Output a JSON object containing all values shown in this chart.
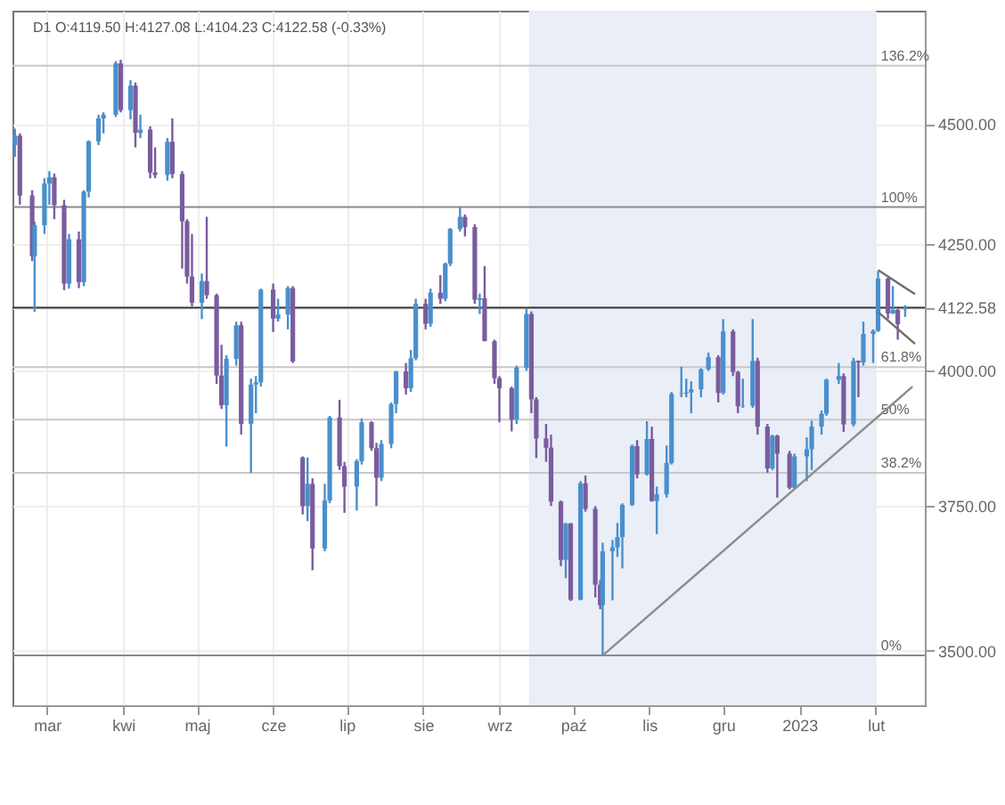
{
  "chart_data": {
    "type": "candlestick",
    "title": "D1 O:4119.50 H:4127.08 L:4104.23 C:4122.58 (-0.33%)",
    "log": "y",
    "grid": true,
    "colors": [
      "#4a8fcc",
      "#7a5c9e",
      "#7a5c9e",
      "#4a8fcc",
      "#4a8fcc",
      "#4a8fcc",
      "#7a5c9e",
      "#7a5c9e",
      "#4a8fcc",
      "#7a5c9e",
      "#4a8fcc",
      "#4a8fcc",
      "#4a8fcc",
      "#4a8fcc",
      "#4a8fcc",
      "#7a5c9e",
      "#4a8fcc",
      "#7a5c9e",
      "#4a8fcc",
      "#7a5c9e",
      "#7a5c9e",
      "#4a8fcc",
      "#7a5c9e",
      "#7a5c9e",
      "#7a5c9e",
      "#7a5c9e",
      "#4a8fcc",
      "#7a5c9e",
      "#7a5c9e",
      "#7a5c9e",
      "#4a8fcc",
      "#4a8fcc",
      "#7a5c9e",
      "#4a8fcc",
      "#4a8fcc",
      "#4a8fcc",
      "#7a5c9e",
      "#4a8fcc",
      "#4a8fcc",
      "#7a5c9e",
      "#7a5c9e",
      "#4a8fcc",
      "#7a5c9e",
      "#4a8fcc",
      "#4a8fcc",
      "#7a5c9e",
      "#7a5c9e",
      "#4a8fcc",
      "#4a8fcc",
      "#7a5c9e",
      "#7a5c9e",
      "#4a8fcc",
      "#4a8fcc",
      "#4a8fcc",
      "#7a5c9e",
      "#4a8fcc",
      "#4a8fcc",
      "#7a5c9e",
      "#4a8fcc",
      "#7a5c9e",
      "#4a8fcc",
      "#4a8fcc",
      "#4a8fcc",
      "#7a5c9e",
      "#7a5c9e",
      "#4a8fcc",
      "#7a5c9e",
      "#7a5c9e",
      "#7a5c9e",
      "#7a5c9e",
      "#4a8fcc",
      "#4a8fcc",
      "#7a5c9e",
      "#7a5c9e",
      "#7a5c9e",
      "#7a5c9e",
      "#7a5c9e",
      "#4a8fcc",
      "#7a5c9e",
      "#4a8fcc",
      "#7a5c9e",
      "#7a5c9e",
      "#7a5c9e",
      "#4a8fcc",
      "#4a8fcc",
      "#4a8fcc",
      "#4a8fcc",
      "#4a8fcc",
      "#7a5c9e",
      "#4a8fcc",
      "#7a5c9e",
      "#4a8fcc",
      "#4a8fcc",
      "#4a8fcc",
      "#4a8fcc",
      "#4a8fcc",
      "#4a8fcc",
      "#4a8fcc",
      "#4a8fcc",
      "#7a5c9e",
      "#4a8fcc",
      "#7a5c9e",
      "#7a5c9e",
      "#4a8fcc",
      "#4a8fcc",
      "#7a5c9e",
      "#7a5c9e",
      "#4a8fcc",
      "#7a5c9e",
      "#7a5c9e",
      "#4a8fcc",
      "#4a8fcc",
      "#4a8fcc",
      "#4a8fcc",
      "#4a8fcc",
      "#4a8fcc",
      "#7a5c9e",
      "#4a8fcc",
      "#7a5c9e",
      "#4a8fcc",
      "#4a8fcc",
      "#4a8fcc",
      "#7a5c9e",
      "#4a8fcc",
      "#7a5c9e",
      "#4a8fcc"
    ],
    "annotations": [
      {
        "text": "136.2%",
        "x": "2023-02-01",
        "y": 4627
      },
      {
        "text": "100%",
        "x": "2023-02-01",
        "y": 4325
      },
      {
        "text": "61.8%",
        "x": "2023-02-01",
        "y": 4007
      },
      {
        "text": "50%",
        "x": "2023-02-01",
        "y": 3908
      },
      {
        "text": "38.2%",
        "x": "2023-02-01",
        "y": 3810
      },
      {
        "text": "0%",
        "x": "2023-02-01",
        "y": 3492
      }
    ],
    "xlim": [
      "2022-02-15",
      "2023-02-21"
    ],
    "xticks": [
      {
        "value": "2022-03-01",
        "label": "mar"
      },
      {
        "value": "2022-04-01",
        "label": "kwi"
      },
      {
        "value": "2022-05-01",
        "label": "maj"
      },
      {
        "value": "2022-06-01",
        "label": "cze"
      },
      {
        "value": "2022-07-01",
        "label": "lip"
      },
      {
        "value": "2022-08-01",
        "label": "sie"
      },
      {
        "value": "2022-09-01",
        "label": "wrz"
      },
      {
        "value": "2022-10-01",
        "label": "paź"
      },
      {
        "value": "2022-11-01",
        "label": "lis"
      },
      {
        "value": "2022-12-01",
        "label": "gru"
      },
      {
        "value": "2023-01-01",
        "label": "2023"
      },
      {
        "value": "2023-02-01",
        "label": "lut"
      }
    ],
    "ylim": [
      3410,
      4750
    ],
    "yticks": [
      {
        "value": 3500,
        "label": "3500.00"
      },
      {
        "value": 3750,
        "label": "3750.00"
      },
      {
        "value": 4000,
        "label": "4000.00"
      },
      {
        "value": 4122.58,
        "label": "4122.58"
      },
      {
        "value": 4250,
        "label": "4250.00"
      },
      {
        "value": 4500,
        "label": "4500.00"
      }
    ],
    "bands": [
      {
        "axis": "x",
        "from": "2022-09-13",
        "to": "2023-02-01",
        "color": "#e9eef7"
      }
    ],
    "ref_lines": [
      {
        "axis": "y",
        "value": 4627,
        "color": "#c8c8c8"
      },
      {
        "axis": "y",
        "value": 4325,
        "color": "#8a8a8a"
      },
      {
        "axis": "y",
        "value": 4007,
        "color": "#c8c8c8"
      },
      {
        "axis": "y",
        "value": 3908,
        "color": "#c8c8c8"
      },
      {
        "axis": "y",
        "value": 3810,
        "color": "#c8c8c8"
      },
      {
        "axis": "y",
        "value": 3492,
        "color": "#8a8a8a"
      },
      {
        "axis": "y",
        "value": 4122.58,
        "color": "#333333"
      }
    ],
    "x": [
      "2022-02-16",
      "2022-02-18",
      "2022-02-23",
      "2022-02-24",
      "2022-02-28",
      "2022-03-02",
      "2022-03-04",
      "2022-03-08",
      "2022-03-10",
      "2022-03-14",
      "2022-03-16",
      "2022-03-18",
      "2022-03-22",
      "2022-03-24",
      "2022-03-29",
      "2022-03-31",
      "2022-04-04",
      "2022-04-06",
      "2022-04-08",
      "2022-04-12",
      "2022-04-14",
      "2022-04-19",
      "2022-04-21",
      "2022-04-25",
      "2022-04-27",
      "2022-04-29",
      "2022-05-03",
      "2022-05-05",
      "2022-05-09",
      "2022-05-11",
      "2022-05-13",
      "2022-05-17",
      "2022-05-19",
      "2022-05-23",
      "2022-05-25",
      "2022-05-27",
      "2022-06-01",
      "2022-06-03",
      "2022-06-07",
      "2022-06-09",
      "2022-06-13",
      "2022-06-15",
      "2022-06-17",
      "2022-06-22",
      "2022-06-24",
      "2022-06-28",
      "2022-06-30",
      "2022-07-05",
      "2022-07-07",
      "2022-07-11",
      "2022-07-13",
      "2022-07-15",
      "2022-07-19",
      "2022-07-21",
      "2022-07-25",
      "2022-07-27",
      "2022-07-29",
      "2022-08-02",
      "2022-08-04",
      "2022-08-08",
      "2022-08-10",
      "2022-08-12",
      "2022-08-16",
      "2022-08-18",
      "2022-08-22",
      "2022-08-24",
      "2022-08-26",
      "2022-08-30",
      "2022-09-01",
      "2022-09-06",
      "2022-09-08",
      "2022-09-12",
      "2022-09-14",
      "2022-09-16",
      "2022-09-20",
      "2022-09-22",
      "2022-09-26",
      "2022-09-28",
      "2022-09-30",
      "2022-10-04",
      "2022-10-06",
      "2022-10-10",
      "2022-10-12",
      "2022-10-13",
      "2022-10-17",
      "2022-10-19",
      "2022-10-21",
      "2022-10-25",
      "2022-10-27",
      "2022-10-31",
      "2022-11-02",
      "2022-11-04",
      "2022-11-08",
      "2022-11-10",
      "2022-11-14",
      "2022-11-16",
      "2022-11-18",
      "2022-11-22",
      "2022-11-25",
      "2022-11-29",
      "2022-12-01",
      "2022-12-05",
      "2022-12-07",
      "2022-12-09",
      "2022-12-13",
      "2022-12-15",
      "2022-12-19",
      "2022-12-21",
      "2022-12-23",
      "2022-12-28",
      "2022-12-30",
      "2023-01-04",
      "2023-01-06",
      "2023-01-10",
      "2023-01-12",
      "2023-01-17",
      "2023-01-19",
      "2023-01-23",
      "2023-01-25",
      "2023-01-27",
      "2023-01-31",
      "2023-02-02",
      "2023-02-06",
      "2023-02-08",
      "2023-02-10",
      "2023-02-13"
    ],
    "ohlc": [
      [
        4455,
        4490,
        4430,
        4475
      ],
      [
        4475,
        4480,
        4330,
        4349
      ],
      [
        4349,
        4360,
        4215,
        4225
      ],
      [
        4225,
        4295,
        4114,
        4288
      ],
      [
        4288,
        4385,
        4270,
        4374
      ],
      [
        4374,
        4400,
        4330,
        4387
      ],
      [
        4387,
        4395,
        4300,
        4329
      ],
      [
        4329,
        4340,
        4157,
        4170
      ],
      [
        4170,
        4270,
        4160,
        4259
      ],
      [
        4259,
        4275,
        4161,
        4173
      ],
      [
        4173,
        4360,
        4165,
        4357
      ],
      [
        4357,
        4465,
        4345,
        4463
      ],
      [
        4463,
        4520,
        4455,
        4512
      ],
      [
        4512,
        4525,
        4480,
        4520
      ],
      [
        4520,
        4637,
        4515,
        4632
      ],
      [
        4632,
        4640,
        4525,
        4530
      ],
      [
        4530,
        4595,
        4510,
        4583
      ],
      [
        4583,
        4590,
        4450,
        4481
      ],
      [
        4481,
        4520,
        4470,
        4488
      ],
      [
        4488,
        4495,
        4385,
        4397
      ],
      [
        4397,
        4450,
        4385,
        4392
      ],
      [
        4392,
        4470,
        4380,
        4462
      ],
      [
        4462,
        4512,
        4385,
        4394
      ],
      [
        4394,
        4400,
        4200,
        4296
      ],
      [
        4296,
        4300,
        4170,
        4184
      ],
      [
        4184,
        4270,
        4125,
        4132
      ],
      [
        4132,
        4190,
        4100,
        4175
      ],
      [
        4175,
        4305,
        4140,
        4147
      ],
      [
        4147,
        4150,
        3975,
        3991
      ],
      [
        3991,
        4050,
        3928,
        3935
      ],
      [
        3935,
        4030,
        3858,
        4023
      ],
      [
        4023,
        4095,
        4010,
        4088
      ],
      [
        4088,
        4095,
        3880,
        3900
      ],
      [
        3900,
        3985,
        3810,
        3974
      ],
      [
        3974,
        3990,
        3920,
        3978
      ],
      [
        3978,
        4160,
        3970,
        4158
      ],
      [
        4158,
        4170,
        4075,
        4101
      ],
      [
        4101,
        4140,
        4095,
        4109
      ],
      [
        4109,
        4165,
        4080,
        4161
      ],
      [
        4161,
        4165,
        4015,
        4018
      ],
      [
        3838,
        3840,
        3735,
        3750
      ],
      [
        3750,
        3838,
        3723,
        3790
      ],
      [
        3790,
        3800,
        3637,
        3675
      ],
      [
        3675,
        3790,
        3670,
        3760
      ],
      [
        3760,
        3915,
        3755,
        3912
      ],
      [
        3912,
        3945,
        3815,
        3822
      ],
      [
        3822,
        3830,
        3738,
        3785
      ],
      [
        3785,
        3835,
        3742,
        3831
      ],
      [
        3831,
        3910,
        3825,
        3903
      ],
      [
        3903,
        3905,
        3850,
        3855
      ],
      [
        3855,
        3865,
        3750,
        3801
      ],
      [
        3801,
        3870,
        3795,
        3863
      ],
      [
        3863,
        3940,
        3855,
        3937
      ],
      [
        3937,
        4000,
        3920,
        3999
      ],
      [
        3999,
        4015,
        3955,
        3967
      ],
      [
        3967,
        4040,
        3960,
        4024
      ],
      [
        4024,
        4140,
        4020,
        4130
      ],
      [
        4130,
        4140,
        4080,
        4091
      ],
      [
        4091,
        4160,
        4085,
        4152
      ],
      [
        4152,
        4187,
        4130,
        4140
      ],
      [
        4140,
        4212,
        4135,
        4210
      ],
      [
        4210,
        4282,
        4205,
        4280
      ],
      [
        4280,
        4325,
        4275,
        4305
      ],
      [
        4305,
        4310,
        4265,
        4284
      ],
      [
        4284,
        4290,
        4130,
        4138
      ],
      [
        4138,
        4150,
        4110,
        4141
      ],
      [
        4141,
        4205,
        4057,
        4057
      ],
      [
        4057,
        4060,
        3975,
        3986
      ],
      [
        3986,
        3990,
        3903,
        3967
      ],
      [
        3967,
        3970,
        3886,
        3908
      ],
      [
        3908,
        4010,
        3900,
        4006
      ],
      [
        4006,
        4120,
        4000,
        4110
      ],
      [
        4110,
        4115,
        3920,
        3946
      ],
      [
        3946,
        3950,
        3837,
        3873
      ],
      [
        3873,
        3900,
        3830,
        3856
      ],
      [
        3856,
        3880,
        3750,
        3758
      ],
      [
        3758,
        3760,
        3644,
        3655
      ],
      [
        3655,
        3720,
        3623,
        3719
      ],
      [
        3719,
        3720,
        3584,
        3586
      ],
      [
        3586,
        3795,
        3585,
        3791
      ],
      [
        3791,
        3805,
        3740,
        3745
      ],
      [
        3745,
        3750,
        3590,
        3612
      ],
      [
        3612,
        3620,
        3570,
        3577
      ],
      [
        3577,
        3685,
        3492,
        3670
      ],
      [
        3670,
        3690,
        3585,
        3677
      ],
      [
        3677,
        3720,
        3660,
        3695
      ],
      [
        3695,
        3755,
        3640,
        3752
      ],
      [
        3752,
        3862,
        3750,
        3859
      ],
      [
        3859,
        3870,
        3800,
        3807
      ],
      [
        3807,
        3905,
        3805,
        3872
      ],
      [
        3872,
        3895,
        3758,
        3759
      ],
      [
        3759,
        3785,
        3700,
        3771
      ],
      [
        3771,
        3860,
        3765,
        3828
      ],
      [
        3828,
        3960,
        3825,
        3956
      ],
      [
        3956,
        4008,
        3950,
        3957
      ],
      [
        3957,
        3985,
        3950,
        3959
      ],
      [
        3959,
        3980,
        3920,
        3965
      ],
      [
        3965,
        4005,
        3950,
        4003
      ],
      [
        4003,
        4035,
        4000,
        4026
      ],
      [
        4026,
        4030,
        3940,
        3958
      ],
      [
        3958,
        4100,
        3955,
        4076
      ],
      [
        4076,
        4080,
        3990,
        3998
      ],
      [
        3998,
        4000,
        3920,
        3933
      ],
      [
        3933,
        3985,
        3930,
        3934
      ],
      [
        3934,
        4100,
        3930,
        4019
      ],
      [
        4019,
        4025,
        3880,
        3895
      ],
      [
        3895,
        3900,
        3810,
        3818
      ],
      [
        3818,
        3880,
        3815,
        3878
      ],
      [
        3878,
        3880,
        3765,
        3845
      ],
      [
        3845,
        3850,
        3780,
        3783
      ],
      [
        3783,
        3845,
        3780,
        3840
      ],
      [
        3840,
        3875,
        3795,
        3853
      ],
      [
        3853,
        3906,
        3815,
        3895
      ],
      [
        3895,
        3925,
        3880,
        3919
      ],
      [
        3919,
        3985,
        3915,
        3983
      ],
      [
        3983,
        4015,
        3975,
        3990
      ],
      [
        3990,
        3995,
        3885,
        3899
      ],
      [
        3899,
        4025,
        3895,
        4019
      ],
      [
        4019,
        4020,
        3950,
        4016
      ],
      [
        4016,
        4095,
        4010,
        4071
      ],
      [
        4071,
        4080,
        4015,
        4077
      ],
      [
        4077,
        4195,
        4075,
        4180
      ],
      [
        4180,
        4182,
        4100,
        4111
      ],
      [
        4111,
        4165,
        4110,
        4118
      ],
      [
        4118,
        4120,
        4060,
        4090
      ],
      [
        4119.5,
        4127.08,
        4104.23,
        4122.58
      ]
    ],
    "series": [
      {
        "type": "line",
        "color": "#8c8c8c",
        "x": [
          "2022-10-13",
          "2023-02-16"
        ],
        "values": [
          3492,
          3970
        ]
      },
      {
        "type": "line",
        "color": "#6f6f6f",
        "x": [
          "2023-02-02",
          "2023-02-17"
        ],
        "values": [
          4197,
          4149
        ]
      },
      {
        "type": "line",
        "color": "#6f6f6f",
        "x": [
          "2023-02-02",
          "2023-02-17"
        ],
        "values": [
          4114,
          4052
        ]
      }
    ]
  }
}
